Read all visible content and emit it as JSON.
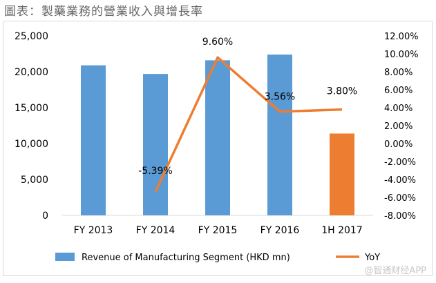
{
  "page": {
    "title": "圖表：製藥業務的營業收入與增長率",
    "watermark": "@智通财经APP"
  },
  "chart_data": {
    "type": "bar",
    "categories": [
      "FY 2013",
      "FY 2014",
      "FY 2015",
      "FY 2016",
      "1H 2017"
    ],
    "series": [
      {
        "name": "Revenue of Manufacturing Segment (HKD mn)",
        "type": "bar",
        "axis": "left",
        "values": [
          20900,
          19700,
          21600,
          22400,
          11400
        ],
        "colors": [
          "#5b9bd5",
          "#5b9bd5",
          "#5b9bd5",
          "#5b9bd5",
          "#ed7d31"
        ]
      },
      {
        "name": "YoY",
        "type": "line",
        "axis": "right",
        "values": [
          null,
          -5.39,
          9.6,
          3.56,
          3.8
        ],
        "labels": [
          "",
          "-5.39%",
          "9.60%",
          "3.56%",
          "3.80%"
        ],
        "color": "#ed7d31"
      }
    ],
    "y_left": {
      "lim": [
        0,
        25000
      ],
      "ticks": [
        0,
        5000,
        10000,
        15000,
        20000,
        25000
      ],
      "tick_labels": [
        "0",
        "5,000",
        "10,000",
        "15,000",
        "20,000",
        "25,000"
      ]
    },
    "y_right": {
      "lim": [
        -8,
        12
      ],
      "ticks": [
        -8,
        -6,
        -4,
        -2,
        0,
        2,
        4,
        6,
        8,
        10,
        12
      ],
      "tick_labels": [
        "-8.00%",
        "-6.00%",
        "-4.00%",
        "-2.00%",
        "0.00%",
        "2.00%",
        "4.00%",
        "6.00%",
        "8.00%",
        "10.00%",
        "12.00%"
      ]
    },
    "grid": false,
    "legend": "bottom"
  }
}
